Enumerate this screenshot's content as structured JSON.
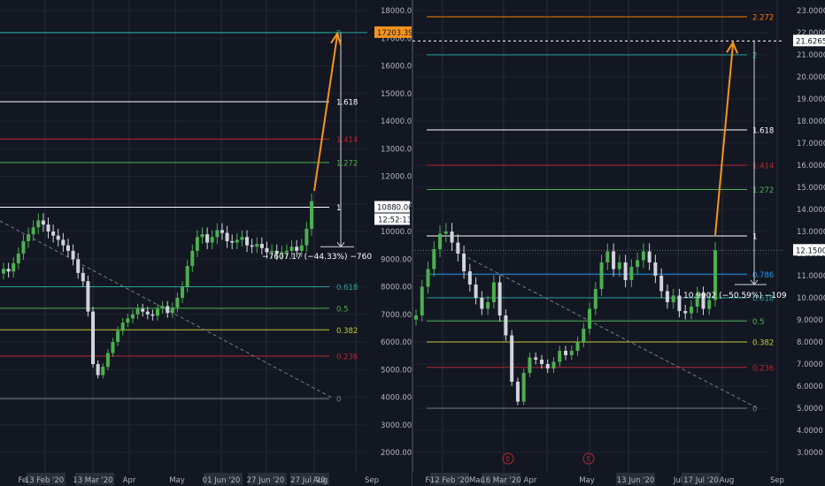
{
  "charts": [
    {
      "id": "left",
      "y_ticks": [
        "18000.00",
        "17000.00",
        "16000.00",
        "15000.00",
        "14000.00",
        "13000.00",
        "12000.00",
        "11000.00",
        "10000.00",
        "9000.00",
        "8000.00",
        "7000.00",
        "6000.00",
        "5000.00",
        "4000.00",
        "3000.00",
        "2000.00"
      ],
      "y_tick_values": [
        18000,
        17000,
        16000,
        15000,
        14000,
        13000,
        12000,
        11000,
        10000,
        9000,
        8000,
        7000,
        6000,
        5000,
        4000,
        3000,
        2000
      ],
      "x_ticks": [
        "Feb",
        "13 Feb '20",
        "13 Mar '20",
        "Apr",
        "May",
        "01 Jun '20",
        "27 Jun '20",
        "27 Jul '20",
        "Aug",
        "Sep"
      ],
      "fib_labels": [
        "2",
        "1.618",
        "1.414",
        "1.272",
        "1",
        "0.618",
        "0.5",
        "0.382",
        "0.236",
        "0"
      ],
      "fib_values": [
        17203.39,
        14700,
        13350,
        12500,
        10880,
        8000,
        7220,
        6440,
        5490,
        3950
      ],
      "fib_colors": [
        "#26a69a",
        "#ffffff",
        "#b22833",
        "#4caf50",
        "#ffffff",
        "#26a69a",
        "#4caf50",
        "#c0ca33",
        "#b22833",
        "#787b86"
      ],
      "price_badge": "10880.00",
      "timer_badge": "12:52:13",
      "target_badge": "17203.39",
      "measure_label": "−7607.17 (−44.33%) −760",
      "candles_close": [
        8650,
        8550,
        8850,
        9200,
        9650,
        9900,
        10150,
        10400,
        10250,
        10000,
        9850,
        9700,
        9500,
        9300,
        9000,
        8500,
        8200,
        7100,
        5200,
        4800,
        5100,
        5600,
        6000,
        6400,
        6700,
        6850,
        7000,
        7200,
        7100,
        7000,
        6950,
        7200,
        7300,
        7050,
        7250,
        7600,
        8000,
        8750,
        9300,
        9800,
        9900,
        9600,
        9800,
        10050,
        9950,
        9650,
        9600,
        9700,
        9800,
        9500,
        9450,
        9550,
        9400,
        9250,
        9300,
        9200,
        9250,
        9300,
        9450,
        9300,
        9500,
        10100,
        11100
      ]
    },
    {
      "id": "right",
      "y_ticks": [
        "23.0000",
        "22.0000",
        "21.0000",
        "20.0000",
        "19.0000",
        "18.0000",
        "17.0000",
        "16.0000",
        "15.0000",
        "14.0000",
        "13.0000",
        "12.0000",
        "11.0000",
        "10.0000",
        "9.0000",
        "8.0000",
        "7.0000",
        "6.0000",
        "5.0000",
        "4.0000",
        "3.0000"
      ],
      "y_tick_values": [
        23,
        22,
        21,
        20,
        19,
        18,
        17,
        16,
        15,
        14,
        13,
        12,
        11,
        10,
        9,
        8,
        7,
        6,
        5,
        4,
        3
      ],
      "x_ticks": [
        "Feb",
        "12 Feb '20",
        "Mar",
        "16 Mar '20",
        "Apr",
        "May",
        "Jun",
        "13 Jun '20",
        "Jul",
        "17 Jul '20",
        "Aug",
        "Sep"
      ],
      "fib_labels": [
        "2.272",
        "2",
        "1.618",
        "1.414",
        "1.272",
        "1",
        "0.786",
        "0.618",
        "0.5",
        "0.382",
        "0.236",
        "0"
      ],
      "fib_values": [
        22.72,
        21.0,
        17.6,
        16.0,
        14.9,
        12.8,
        11.07,
        10.0,
        8.95,
        8.0,
        6.85,
        5.0
      ],
      "fib_colors": [
        "#f57c00",
        "#26a69a",
        "#ffffff",
        "#b22833",
        "#4caf50",
        "#ffffff",
        "#2196f3",
        "#26a69a",
        "#4caf50",
        "#c0ca33",
        "#b22833",
        "#787b86"
      ],
      "price_badge": "12.1500",
      "target_badge": "21.6265",
      "measure_label": "10.9002 (−50.59%) −109",
      "event_markers": [
        "E",
        "E"
      ],
      "candles_close": [
        9.2,
        10.5,
        11.3,
        12.2,
        12.9,
        13.0,
        12.5,
        12.0,
        11.2,
        10.6,
        10.0,
        9.5,
        9.8,
        10.7,
        9.2,
        8.3,
        6.2,
        5.3,
        6.6,
        7.3,
        7.2,
        7.0,
        6.8,
        7.1,
        7.6,
        7.4,
        7.6,
        8.0,
        8.6,
        9.5,
        10.4,
        11.6,
        12.1,
        11.3,
        11.6,
        10.8,
        11.4,
        11.7,
        12.1,
        11.6,
        11.0,
        10.3,
        9.8,
        10.1,
        9.4,
        9.3,
        9.6,
        10.2,
        9.5,
        9.9,
        12.15
      ]
    }
  ]
}
